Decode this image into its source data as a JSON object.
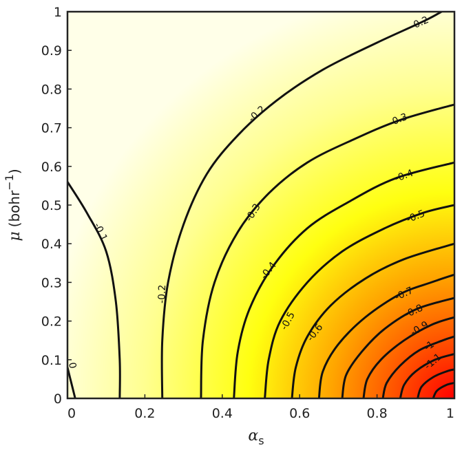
{
  "chart_data": {
    "type": "contour",
    "title": "",
    "xlabel": {
      "symbol": "α",
      "subscript": "s"
    },
    "ylabel": {
      "symbol": "μ",
      "unit": "(bohr",
      "sup": "−1",
      "close": ")"
    },
    "xlim": [
      0,
      1
    ],
    "ylim": [
      0,
      1
    ],
    "xticks": [
      {
        "value": 0,
        "label": "0"
      },
      {
        "value": 0.2,
        "label": "0.2"
      },
      {
        "value": 0.4,
        "label": "0.4"
      },
      {
        "value": 0.6,
        "label": "0.6"
      },
      {
        "value": 0.8,
        "label": "0.8"
      },
      {
        "value": 1,
        "label": "1"
      }
    ],
    "yticks": [
      {
        "value": 0,
        "label": "0"
      },
      {
        "value": 0.1,
        "label": "0.1"
      },
      {
        "value": 0.2,
        "label": "0.2"
      },
      {
        "value": 0.3,
        "label": "0.3"
      },
      {
        "value": 0.4,
        "label": "0.4"
      },
      {
        "value": 0.5,
        "label": "0.5"
      },
      {
        "value": 0.6,
        "label": "0.6"
      },
      {
        "value": 0.7,
        "label": "0.7"
      },
      {
        "value": 0.8,
        "label": "0.8"
      },
      {
        "value": 0.9,
        "label": "0.9"
      },
      {
        "value": 1,
        "label": "1"
      }
    ],
    "colormap": "yellow-orange-red",
    "colors": {
      "max": "#ffffe8",
      "mid": "#ffff00",
      "low": "#ffa500",
      "min": "#ff0000"
    },
    "value_range": [
      -1.2,
      0
    ],
    "grid": false,
    "contours": [
      {
        "level": 0,
        "label": "0",
        "points": [
          [
            0.0,
            0.08
          ],
          [
            0.01,
            0.04
          ],
          [
            0.02,
            0.0
          ]
        ],
        "label_pos": [
          0.012,
          0.085
        ],
        "label_angle": 80
      },
      {
        "level": -0.1,
        "label": "-0.1",
        "points": [
          [
            0.0,
            0.56
          ],
          [
            0.05,
            0.48
          ],
          [
            0.1,
            0.38
          ],
          [
            0.125,
            0.25
          ],
          [
            0.135,
            0.1
          ],
          [
            0.135,
            0.0
          ]
        ],
        "label_pos": [
          0.085,
          0.43
        ],
        "label_angle": 65
      },
      {
        "level": -0.2,
        "label": "-0.2",
        "points": [
          [
            0.245,
            0.0
          ],
          [
            0.245,
            0.15
          ],
          [
            0.26,
            0.3
          ],
          [
            0.3,
            0.45
          ],
          [
            0.36,
            0.58
          ],
          [
            0.44,
            0.68
          ],
          [
            0.54,
            0.77
          ],
          [
            0.66,
            0.85
          ],
          [
            0.8,
            0.92
          ],
          [
            0.93,
            0.98
          ],
          [
            1.0,
            1.02
          ]
        ],
        "label_pos": [
          0.245,
          0.27
        ],
        "label_angle": -88,
        "label_pos2": [
          0.49,
          0.735
        ],
        "label_angle2": -42,
        "label_pos3": [
          0.91,
          0.97
        ],
        "label_angle3": -24
      },
      {
        "level": -0.3,
        "label": "-0.3",
        "points": [
          [
            0.345,
            0.0
          ],
          [
            0.35,
            0.15
          ],
          [
            0.38,
            0.3
          ],
          [
            0.44,
            0.43
          ],
          [
            0.52,
            0.53
          ],
          [
            0.62,
            0.61
          ],
          [
            0.74,
            0.67
          ],
          [
            0.86,
            0.72
          ],
          [
            1.0,
            0.76
          ]
        ],
        "label_pos": [
          0.48,
          0.48
        ],
        "label_angle": -58,
        "label_pos2": [
          0.855,
          0.72
        ],
        "label_angle2": -22
      },
      {
        "level": -0.4,
        "label": "-0.4",
        "points": [
          [
            0.43,
            0.0
          ],
          [
            0.44,
            0.12
          ],
          [
            0.47,
            0.23
          ],
          [
            0.53,
            0.34
          ],
          [
            0.62,
            0.44
          ],
          [
            0.73,
            0.51
          ],
          [
            0.85,
            0.57
          ],
          [
            1.0,
            0.61
          ]
        ],
        "label_pos": [
          0.52,
          0.33
        ],
        "label_angle": -52,
        "label_pos2": [
          0.87,
          0.575
        ],
        "label_angle2": -20
      },
      {
        "level": -0.5,
        "label": "-0.5",
        "points": [
          [
            0.51,
            0.0
          ],
          [
            0.52,
            0.1
          ],
          [
            0.55,
            0.2
          ],
          [
            0.62,
            0.3
          ],
          [
            0.71,
            0.38
          ],
          [
            0.82,
            0.44
          ],
          [
            0.92,
            0.48
          ],
          [
            1.0,
            0.5
          ]
        ],
        "label_pos": [
          0.57,
          0.2
        ],
        "label_angle": -62,
        "label_pos2": [
          0.9,
          0.47
        ],
        "label_angle2": -22
      },
      {
        "level": -0.6,
        "label": "-0.6",
        "points": [
          [
            0.58,
            0.0
          ],
          [
            0.59,
            0.08
          ],
          [
            0.62,
            0.16
          ],
          [
            0.68,
            0.24
          ],
          [
            0.77,
            0.31
          ],
          [
            0.87,
            0.36
          ],
          [
            1.0,
            0.4
          ]
        ],
        "label_pos": [
          0.64,
          0.17
        ],
        "label_angle": -52
      },
      {
        "level": -0.7,
        "label": "-0.7",
        "points": [
          [
            0.65,
            0.0
          ],
          [
            0.66,
            0.07
          ],
          [
            0.7,
            0.14
          ],
          [
            0.77,
            0.21
          ],
          [
            0.86,
            0.27
          ],
          [
            0.94,
            0.3
          ],
          [
            1.0,
            0.32
          ]
        ],
        "label_pos": [
          0.87,
          0.27
        ],
        "label_angle": -25
      },
      {
        "level": -0.8,
        "label": "-0.8",
        "points": [
          [
            0.71,
            0.0
          ],
          [
            0.72,
            0.06
          ],
          [
            0.76,
            0.12
          ],
          [
            0.82,
            0.18
          ],
          [
            0.9,
            0.23
          ],
          [
            1.0,
            0.26
          ]
        ],
        "label_pos": [
          0.895,
          0.225
        ],
        "label_angle": -25
      },
      {
        "level": -0.9,
        "label": "-0.9",
        "points": [
          [
            0.765,
            0.0
          ],
          [
            0.775,
            0.05
          ],
          [
            0.81,
            0.1
          ],
          [
            0.87,
            0.15
          ],
          [
            0.94,
            0.19
          ],
          [
            1.0,
            0.21
          ]
        ],
        "label_pos": [
          0.91,
          0.18
        ],
        "label_angle": -30
      },
      {
        "level": -1,
        "label": "-1",
        "points": [
          [
            0.815,
            0.0
          ],
          [
            0.825,
            0.04
          ],
          [
            0.86,
            0.085
          ],
          [
            0.91,
            0.125
          ],
          [
            0.97,
            0.15
          ],
          [
            1.0,
            0.16
          ]
        ],
        "label_pos": [
          0.935,
          0.135
        ],
        "label_angle": -35
      },
      {
        "level": -1.1,
        "label": "-1.1",
        "points": [
          [
            0.86,
            0.0
          ],
          [
            0.87,
            0.035
          ],
          [
            0.9,
            0.07
          ],
          [
            0.95,
            0.1
          ],
          [
            1.0,
            0.115
          ]
        ],
        "label_pos": [
          0.945,
          0.095
        ],
        "label_angle": -40
      },
      {
        "level": -1.2,
        "label": "",
        "points": [
          [
            0.905,
            0.0
          ],
          [
            0.915,
            0.03
          ],
          [
            0.945,
            0.055
          ],
          [
            0.98,
            0.07
          ],
          [
            1.0,
            0.075
          ]
        ]
      },
      {
        "level": -1.25,
        "label": "",
        "points": [
          [
            0.945,
            0.0
          ],
          [
            0.955,
            0.02
          ],
          [
            0.98,
            0.035
          ],
          [
            1.0,
            0.04
          ]
        ]
      }
    ]
  }
}
